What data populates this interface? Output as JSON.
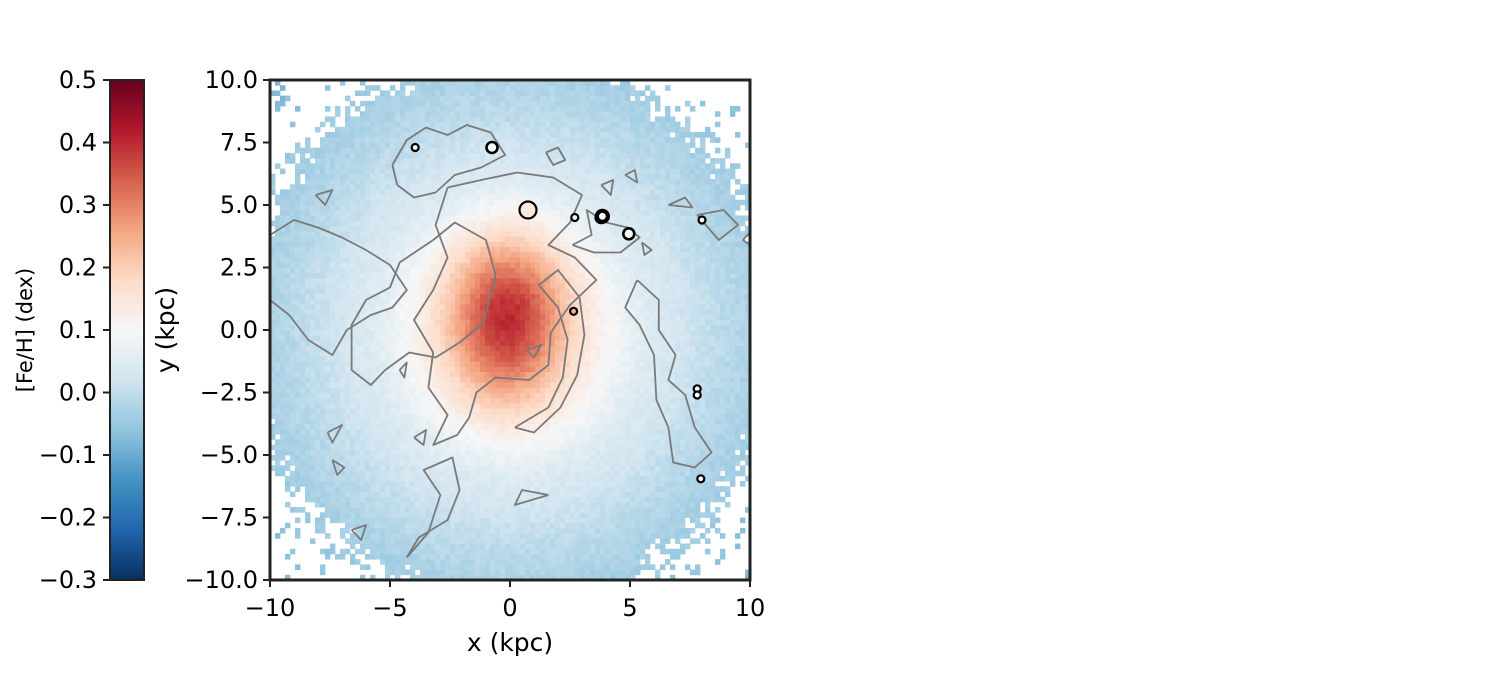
{
  "chart_data": {
    "type": "heatmap",
    "title": "",
    "xlabel": "x (kpc)",
    "ylabel": "y (kpc)",
    "xlim": [
      -10,
      10
    ],
    "ylim": [
      -10,
      10
    ],
    "x_ticks": [
      -10,
      -5,
      0,
      5,
      10
    ],
    "x_tick_labels": [
      "−10",
      "−5",
      "0",
      "5",
      "10"
    ],
    "y_ticks": [
      -10,
      -7.5,
      -5,
      -2.5,
      0,
      2.5,
      5,
      7.5,
      10
    ],
    "y_tick_labels": [
      "−10.0",
      "−7.5",
      "−5.0",
      "−2.5",
      "0.0",
      "2.5",
      "5.0",
      "7.5",
      "10.0"
    ],
    "colorbar": {
      "label": "[Fe/H] (dex)",
      "colormap": "RdBu_r",
      "range": [
        -0.3,
        0.5
      ],
      "ticks": [
        -0.3,
        -0.2,
        -0.1,
        0.0,
        0.1,
        0.2,
        0.3,
        0.4,
        0.5
      ],
      "tick_labels": [
        "−0.3",
        "−0.2",
        "−0.1",
        "0.0",
        "0.1",
        "0.2",
        "0.3",
        "0.4",
        "0.5"
      ],
      "stops": [
        "#053061",
        "#2166ac",
        "#4393c3",
        "#92c5de",
        "#d1e5f0",
        "#f7f7f7",
        "#fddbc7",
        "#f4a582",
        "#d6604d",
        "#b2182b",
        "#67001f"
      ]
    },
    "map_model": {
      "description": "estimated metallicity field [Fe/H] in dex",
      "center_value": 0.38,
      "edge_value": 0.02,
      "outer_value": -0.01,
      "peak_x": -0.1,
      "peak_y": 0.3
    },
    "contour_color": "#7a7a7a",
    "contours": [
      [
        [
          -4.9,
          6.6
        ],
        [
          -4.3,
          7.6
        ],
        [
          -3.5,
          8.1
        ],
        [
          -2.6,
          7.8
        ],
        [
          -1.8,
          8.2
        ],
        [
          -0.8,
          7.9
        ],
        [
          -0.2,
          7.0
        ],
        [
          -1.2,
          6.5
        ],
        [
          -2.3,
          6.2
        ],
        [
          -3.1,
          5.5
        ],
        [
          -4.0,
          5.3
        ],
        [
          -4.7,
          5.8
        ],
        [
          -4.9,
          6.6
        ]
      ],
      [
        [
          -10,
          3.8
        ],
        [
          -9.0,
          4.4
        ],
        [
          -8.0,
          4.1
        ],
        [
          -7.0,
          3.7
        ],
        [
          -6.0,
          3.2
        ],
        [
          -5.0,
          2.6
        ],
        [
          -4.3,
          1.6
        ],
        [
          -4.9,
          0.9
        ],
        [
          -5.8,
          0.6
        ],
        [
          -6.8,
          0.0
        ],
        [
          -7.4,
          -1.0
        ],
        [
          -8.4,
          -0.4
        ],
        [
          -9.2,
          0.6
        ],
        [
          -10,
          1.2
        ]
      ],
      [
        [
          -5.2,
          -1.6
        ],
        [
          -4.2,
          -0.9
        ],
        [
          -3.1,
          -1.1
        ],
        [
          -2.1,
          -0.5
        ],
        [
          -1.1,
          0.3
        ],
        [
          -0.6,
          2.2
        ],
        [
          -1.0,
          3.6
        ],
        [
          -2.3,
          4.3
        ],
        [
          -3.2,
          3.6
        ],
        [
          -4.6,
          2.7
        ],
        [
          -5.0,
          1.7
        ],
        [
          -6.0,
          1.2
        ],
        [
          -6.6,
          0.2
        ],
        [
          -6.6,
          -1.6
        ],
        [
          -5.8,
          -2.2
        ],
        [
          -5.2,
          -1.6
        ]
      ],
      [
        [
          -2.6,
          5.7
        ],
        [
          -1.2,
          6.0
        ],
        [
          0.3,
          6.3
        ],
        [
          1.8,
          6.1
        ],
        [
          3.0,
          5.4
        ],
        [
          2.5,
          4.3
        ],
        [
          1.6,
          3.4
        ],
        [
          2.7,
          2.9
        ],
        [
          3.6,
          2.0
        ],
        [
          2.5,
          1.0
        ],
        [
          1.7,
          -0.1
        ],
        [
          1.6,
          -1.4
        ],
        [
          0.8,
          -2.0
        ],
        [
          -0.6,
          -1.9
        ],
        [
          -1.4,
          -2.5
        ],
        [
          -1.7,
          -3.5
        ],
        [
          -2.2,
          -4.2
        ],
        [
          -3.2,
          -4.6
        ],
        [
          -2.6,
          -3.4
        ],
        [
          -3.4,
          -2.3
        ],
        [
          -3.2,
          -0.9
        ],
        [
          -4.0,
          0.4
        ],
        [
          -3.2,
          1.6
        ],
        [
          -2.6,
          2.9
        ],
        [
          -3.1,
          4.2
        ],
        [
          -2.6,
          5.7
        ]
      ],
      [
        [
          0.2,
          -3.9
        ],
        [
          1.6,
          -3.1
        ],
        [
          2.2,
          -1.9
        ],
        [
          2.4,
          -0.4
        ],
        [
          2.0,
          0.9
        ],
        [
          1.2,
          1.8
        ],
        [
          2.0,
          2.4
        ],
        [
          2.9,
          1.3
        ],
        [
          3.1,
          -0.2
        ],
        [
          2.8,
          -1.8
        ],
        [
          2.1,
          -3.1
        ],
        [
          1.0,
          -4.1
        ],
        [
          0.2,
          -3.9
        ]
      ],
      [
        [
          5.3,
          2.0
        ],
        [
          6.2,
          1.2
        ],
        [
          6.2,
          0.0
        ],
        [
          6.9,
          -1.0
        ],
        [
          6.6,
          -2.0
        ],
        [
          7.3,
          -2.6
        ],
        [
          7.7,
          -3.9
        ],
        [
          8.4,
          -4.9
        ],
        [
          7.7,
          -5.5
        ],
        [
          6.8,
          -5.3
        ],
        [
          6.6,
          -3.9
        ],
        [
          6.1,
          -2.8
        ],
        [
          6.0,
          -1.0
        ],
        [
          5.4,
          0.2
        ],
        [
          4.8,
          0.9
        ],
        [
          5.3,
          2.0
        ]
      ],
      [
        [
          2.6,
          3.4
        ],
        [
          3.4,
          3.8
        ],
        [
          3.2,
          4.8
        ],
        [
          4.0,
          4.3
        ],
        [
          4.9,
          4.1
        ],
        [
          5.4,
          3.7
        ],
        [
          4.6,
          3.1
        ],
        [
          3.5,
          3.1
        ],
        [
          2.6,
          3.4
        ]
      ],
      [
        [
          -4.3,
          -9.1
        ],
        [
          -3.4,
          -8.1
        ],
        [
          -2.9,
          -6.6
        ],
        [
          -3.6,
          -5.6
        ],
        [
          -2.4,
          -5.1
        ],
        [
          -2.1,
          -6.4
        ],
        [
          -2.6,
          -7.6
        ],
        [
          -3.8,
          -8.3
        ],
        [
          -4.3,
          -9.1
        ]
      ],
      [
        [
          -7.6,
          -4.1
        ],
        [
          -7.0,
          -3.8
        ],
        [
          -7.4,
          -4.5
        ],
        [
          -7.6,
          -4.1
        ]
      ],
      [
        [
          -7.4,
          -5.2
        ],
        [
          -6.9,
          -5.5
        ],
        [
          -7.2,
          -5.8
        ],
        [
          -7.4,
          -5.2
        ]
      ],
      [
        [
          -4.0,
          -4.3
        ],
        [
          -3.5,
          -4.0
        ],
        [
          -3.6,
          -4.6
        ],
        [
          -4.0,
          -4.3
        ]
      ],
      [
        [
          -6.6,
          -8.0
        ],
        [
          -6.0,
          -7.8
        ],
        [
          -6.2,
          -8.4
        ],
        [
          -6.6,
          -8.0
        ]
      ],
      [
        [
          1.6,
          -6.6
        ],
        [
          0.2,
          -7.0
        ],
        [
          0.5,
          -6.4
        ],
        [
          1.6,
          -6.6
        ]
      ],
      [
        [
          -8.1,
          5.4
        ],
        [
          -7.7,
          5.0
        ],
        [
          -7.4,
          5.6
        ],
        [
          -8.1,
          5.4
        ]
      ],
      [
        [
          1.5,
          7.1
        ],
        [
          2.0,
          7.3
        ],
        [
          2.3,
          6.8
        ],
        [
          1.8,
          6.6
        ],
        [
          1.5,
          7.1
        ]
      ],
      [
        [
          6.6,
          5.0
        ],
        [
          7.3,
          5.3
        ],
        [
          7.6,
          4.9
        ],
        [
          6.6,
          5.0
        ]
      ],
      [
        [
          7.8,
          4.6
        ],
        [
          8.9,
          4.8
        ],
        [
          9.5,
          4.2
        ],
        [
          8.7,
          3.6
        ],
        [
          7.8,
          4.6
        ]
      ],
      [
        [
          0.7,
          -0.8
        ],
        [
          1.3,
          -0.6
        ],
        [
          1.0,
          -1.1
        ],
        [
          0.7,
          -0.8
        ]
      ],
      [
        [
          -4.6,
          -1.6
        ],
        [
          -4.3,
          -1.3
        ],
        [
          -4.4,
          -1.9
        ],
        [
          -4.6,
          -1.6
        ]
      ],
      [
        [
          3.8,
          5.8
        ],
        [
          4.3,
          6.0
        ],
        [
          4.2,
          5.4
        ],
        [
          3.8,
          5.8
        ]
      ],
      [
        [
          4.8,
          6.2
        ],
        [
          5.2,
          6.4
        ],
        [
          5.3,
          5.9
        ],
        [
          4.8,
          6.2
        ]
      ],
      [
        [
          9.7,
          3.6
        ],
        [
          10,
          3.4
        ],
        [
          10,
          3.9
        ],
        [
          9.7,
          3.6
        ]
      ],
      [
        [
          5.5,
          3.5
        ],
        [
          5.9,
          3.2
        ],
        [
          5.6,
          3.0
        ],
        [
          5.5,
          3.5
        ]
      ]
    ],
    "points": [
      {
        "x": -3.95,
        "y": 7.3,
        "size": "small",
        "feh": 0.1
      },
      {
        "x": -0.75,
        "y": 7.3,
        "size": "medium",
        "feh": 0.1
      },
      {
        "x": 0.75,
        "y": 4.8,
        "size": "large",
        "feh": 0.14
      },
      {
        "x": 2.7,
        "y": 4.5,
        "size": "small",
        "feh": 0.12
      },
      {
        "x": 3.8,
        "y": 4.5,
        "size": "medium",
        "feh": 0.1
      },
      {
        "x": 3.85,
        "y": 4.55,
        "size": "bold",
        "feh": 0.1
      },
      {
        "x": 4.95,
        "y": 3.85,
        "size": "medium",
        "feh": 0.1
      },
      {
        "x": 8.0,
        "y": 4.4,
        "size": "small",
        "feh": 0.1
      },
      {
        "x": 2.65,
        "y": 0.75,
        "size": "small",
        "feh": 0.24
      },
      {
        "x": 7.8,
        "y": -2.35,
        "size": "small",
        "feh": 0.1
      },
      {
        "x": 7.8,
        "y": -2.6,
        "size": "small",
        "feh": 0.1
      },
      {
        "x": 7.95,
        "y": -5.95,
        "size": "small",
        "feh": 0.1
      }
    ]
  }
}
